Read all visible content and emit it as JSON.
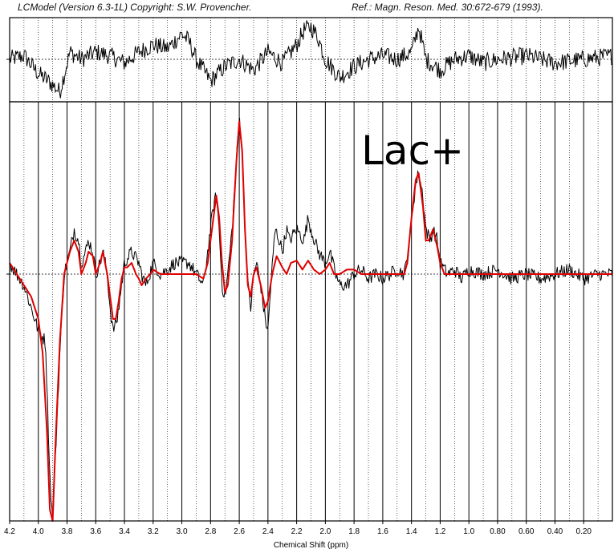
{
  "header": {
    "version": "LCModel (Version 6.3-1L) Copyright: S.W. Provencher.",
    "reference": "Ref.: Magn. Reson. Med. 30:672-679 (1993)."
  },
  "chart_data": {
    "type": "line",
    "metabolite_label": "Lac+",
    "xlabel": "Chemical Shift (ppm)",
    "xlim": [
      4.2,
      0.0
    ],
    "x_reversed": true,
    "x_ticks": [
      4.2,
      4.0,
      3.8,
      3.6,
      3.4,
      3.2,
      3.0,
      2.8,
      2.6,
      2.4,
      2.2,
      2.0,
      1.8,
      1.6,
      1.4,
      1.2,
      1.0,
      0.8,
      0.6,
      0.4,
      0.2
    ],
    "x_tick_labels": [
      "4.2",
      "4.0",
      "3.8",
      "3.6",
      "3.4",
      "3.2",
      "3.0",
      "2.8",
      "2.6",
      "2.4",
      "2.2",
      "2.0",
      "1.8",
      "1.6",
      "1.4",
      "1.2",
      "1.0",
      "0.80",
      "0.60",
      "0.40",
      "0.20"
    ],
    "grid": true,
    "colors": {
      "data": "#000000",
      "fit": "#e00000",
      "grid": "#000000"
    },
    "residual_panel": {
      "baseline_dotted": true,
      "points": [
        [
          4.2,
          0.0
        ],
        [
          4.1,
          0.1
        ],
        [
          4.0,
          -0.4
        ],
        [
          3.93,
          -0.6
        ],
        [
          3.85,
          -0.9
        ],
        [
          3.78,
          0.2
        ],
        [
          3.7,
          0.0
        ],
        [
          3.6,
          0.2
        ],
        [
          3.5,
          0.1
        ],
        [
          3.4,
          -0.1
        ],
        [
          3.3,
          0.2
        ],
        [
          3.2,
          0.4
        ],
        [
          3.1,
          0.3
        ],
        [
          3.0,
          0.7
        ],
        [
          2.95,
          0.5
        ],
        [
          2.9,
          0.0
        ],
        [
          2.8,
          -0.6
        ],
        [
          2.7,
          -0.2
        ],
        [
          2.6,
          0.0
        ],
        [
          2.5,
          -0.3
        ],
        [
          2.4,
          0.2
        ],
        [
          2.3,
          -0.1
        ],
        [
          2.2,
          0.4
        ],
        [
          2.15,
          0.8
        ],
        [
          2.1,
          0.9
        ],
        [
          2.05,
          0.6
        ],
        [
          2.0,
          0.0
        ],
        [
          1.9,
          -0.5
        ],
        [
          1.8,
          -0.2
        ],
        [
          1.7,
          0.0
        ],
        [
          1.6,
          0.1
        ],
        [
          1.5,
          0.0
        ],
        [
          1.4,
          0.2
        ],
        [
          1.35,
          0.9
        ],
        [
          1.3,
          0.0
        ],
        [
          1.2,
          -0.3
        ],
        [
          1.1,
          0.0
        ],
        [
          1.0,
          0.1
        ],
        [
          0.9,
          -0.1
        ],
        [
          0.8,
          0.0
        ],
        [
          0.6,
          0.1
        ],
        [
          0.4,
          -0.1
        ],
        [
          0.2,
          0.0
        ],
        [
          0.0,
          0.1
        ]
      ]
    },
    "series": [
      {
        "id": "data",
        "points": [
          [
            4.2,
            0.05
          ],
          [
            4.15,
            0.0
          ],
          [
            4.1,
            -0.05
          ],
          [
            4.05,
            -0.15
          ],
          [
            4.0,
            -0.25
          ],
          [
            3.95,
            -0.3
          ],
          [
            3.92,
            -0.9
          ],
          [
            3.9,
            -1.1
          ],
          [
            3.88,
            -0.8
          ],
          [
            3.85,
            -0.35
          ],
          [
            3.82,
            0.0
          ],
          [
            3.78,
            0.1
          ],
          [
            3.75,
            0.2
          ],
          [
            3.72,
            0.15
          ],
          [
            3.7,
            0.05
          ],
          [
            3.67,
            0.1
          ],
          [
            3.65,
            0.15
          ],
          [
            3.62,
            0.1
          ],
          [
            3.6,
            0.0
          ],
          [
            3.57,
            0.05
          ],
          [
            3.55,
            0.1
          ],
          [
            3.52,
            0.0
          ],
          [
            3.5,
            -0.15
          ],
          [
            3.48,
            -0.25
          ],
          [
            3.45,
            -0.2
          ],
          [
            3.42,
            -0.05
          ],
          [
            3.4,
            0.05
          ],
          [
            3.35,
            0.1
          ],
          [
            3.3,
            0.05
          ],
          [
            3.28,
            0.0
          ],
          [
            3.25,
            -0.05
          ],
          [
            3.2,
            0.05
          ],
          [
            3.15,
            0.0
          ],
          [
            3.1,
            0.02
          ],
          [
            3.05,
            0.05
          ],
          [
            3.0,
            0.05
          ],
          [
            2.95,
            0.05
          ],
          [
            2.9,
            0.0
          ],
          [
            2.85,
            -0.05
          ],
          [
            2.82,
            0.1
          ],
          [
            2.78,
            0.3
          ],
          [
            2.76,
            0.35
          ],
          [
            2.74,
            0.2
          ],
          [
            2.72,
            -0.05
          ],
          [
            2.7,
            -0.1
          ],
          [
            2.68,
            0.0
          ],
          [
            2.65,
            0.2
          ],
          [
            2.62,
            0.5
          ],
          [
            2.6,
            0.7
          ],
          [
            2.58,
            0.55
          ],
          [
            2.56,
            0.2
          ],
          [
            2.54,
            -0.05
          ],
          [
            2.52,
            -0.15
          ],
          [
            2.5,
            0.0
          ],
          [
            2.48,
            0.05
          ],
          [
            2.45,
            -0.05
          ],
          [
            2.42,
            -0.2
          ],
          [
            2.4,
            -0.25
          ],
          [
            2.38,
            -0.05
          ],
          [
            2.35,
            0.2
          ],
          [
            2.32,
            0.15
          ],
          [
            2.3,
            0.1
          ],
          [
            2.27,
            0.2
          ],
          [
            2.25,
            0.15
          ],
          [
            2.2,
            0.2
          ],
          [
            2.15,
            0.15
          ],
          [
            2.12,
            0.25
          ],
          [
            2.1,
            0.2
          ],
          [
            2.05,
            0.1
          ],
          [
            2.0,
            0.05
          ],
          [
            1.97,
            0.1
          ],
          [
            1.93,
            0.0
          ],
          [
            1.9,
            -0.05
          ],
          [
            1.85,
            -0.05
          ],
          [
            1.8,
            0.0
          ],
          [
            1.75,
            0.02
          ],
          [
            1.7,
            -0.02
          ],
          [
            1.65,
            0.0
          ],
          [
            1.6,
            -0.02
          ],
          [
            1.55,
            0.0
          ],
          [
            1.5,
            0.02
          ],
          [
            1.45,
            0.0
          ],
          [
            1.42,
            0.1
          ],
          [
            1.4,
            0.25
          ],
          [
            1.37,
            0.4
          ],
          [
            1.35,
            0.45
          ],
          [
            1.32,
            0.35
          ],
          [
            1.3,
            0.2
          ],
          [
            1.27,
            0.15
          ],
          [
            1.25,
            0.2
          ],
          [
            1.22,
            0.15
          ],
          [
            1.2,
            0.05
          ],
          [
            1.15,
            0.0
          ],
          [
            1.1,
            0.02
          ],
          [
            1.05,
            -0.02
          ],
          [
            1.0,
            0.02
          ],
          [
            0.9,
            0.0
          ],
          [
            0.8,
            0.02
          ],
          [
            0.7,
            -0.02
          ],
          [
            0.6,
            0.0
          ],
          [
            0.5,
            -0.02
          ],
          [
            0.4,
            0.0
          ],
          [
            0.3,
            0.02
          ],
          [
            0.2,
            -0.02
          ],
          [
            0.1,
            0.0
          ],
          [
            0.0,
            0.0
          ]
        ],
        "noisy": true
      },
      {
        "id": "fit",
        "points": [
          [
            4.2,
            0.05
          ],
          [
            4.15,
            0.0
          ],
          [
            4.1,
            -0.05
          ],
          [
            4.05,
            -0.1
          ],
          [
            4.0,
            -0.2
          ],
          [
            3.97,
            -0.35
          ],
          [
            3.94,
            -0.7
          ],
          [
            3.92,
            -1.05
          ],
          [
            3.9,
            -1.1
          ],
          [
            3.88,
            -0.75
          ],
          [
            3.85,
            -0.3
          ],
          [
            3.82,
            0.0
          ],
          [
            3.78,
            0.1
          ],
          [
            3.75,
            0.15
          ],
          [
            3.72,
            0.1
          ],
          [
            3.7,
            0.0
          ],
          [
            3.67,
            0.05
          ],
          [
            3.65,
            0.1
          ],
          [
            3.62,
            0.08
          ],
          [
            3.6,
            0.0
          ],
          [
            3.57,
            0.05
          ],
          [
            3.55,
            0.1
          ],
          [
            3.52,
            0.0
          ],
          [
            3.5,
            -0.1
          ],
          [
            3.48,
            -0.2
          ],
          [
            3.46,
            -0.2
          ],
          [
            3.44,
            -0.12
          ],
          [
            3.42,
            -0.02
          ],
          [
            3.4,
            0.03
          ],
          [
            3.38,
            0.03
          ],
          [
            3.35,
            0.05
          ],
          [
            3.32,
            0.0
          ],
          [
            3.3,
            -0.02
          ],
          [
            3.28,
            -0.05
          ],
          [
            3.25,
            -0.02
          ],
          [
            3.22,
            0.0
          ],
          [
            3.2,
            0.02
          ],
          [
            3.15,
            0.0
          ],
          [
            3.0,
            0.0
          ],
          [
            2.9,
            0.0
          ],
          [
            2.85,
            -0.02
          ],
          [
            2.82,
            0.05
          ],
          [
            2.79,
            0.2
          ],
          [
            2.76,
            0.35
          ],
          [
            2.74,
            0.25
          ],
          [
            2.72,
            0.05
          ],
          [
            2.7,
            -0.08
          ],
          [
            2.68,
            -0.05
          ],
          [
            2.65,
            0.15
          ],
          [
            2.62,
            0.5
          ],
          [
            2.6,
            0.68
          ],
          [
            2.58,
            0.55
          ],
          [
            2.56,
            0.2
          ],
          [
            2.54,
            -0.05
          ],
          [
            2.52,
            -0.1
          ],
          [
            2.5,
            0.0
          ],
          [
            2.48,
            0.03
          ],
          [
            2.45,
            -0.05
          ],
          [
            2.42,
            -0.15
          ],
          [
            2.4,
            -0.12
          ],
          [
            2.37,
            0.0
          ],
          [
            2.34,
            0.08
          ],
          [
            2.3,
            0.03
          ],
          [
            2.27,
            0.0
          ],
          [
            2.24,
            0.05
          ],
          [
            2.2,
            0.06
          ],
          [
            2.16,
            0.02
          ],
          [
            2.12,
            0.06
          ],
          [
            2.08,
            0.02
          ],
          [
            2.04,
            0.0
          ],
          [
            2.0,
            0.02
          ],
          [
            1.97,
            0.05
          ],
          [
            1.94,
            0.0
          ],
          [
            1.9,
            0.0
          ],
          [
            1.85,
            0.02
          ],
          [
            1.8,
            0.02
          ],
          [
            1.75,
            0.0
          ],
          [
            1.65,
            0.0
          ],
          [
            1.5,
            0.0
          ],
          [
            1.45,
            0.0
          ],
          [
            1.43,
            0.05
          ],
          [
            1.4,
            0.25
          ],
          [
            1.37,
            0.42
          ],
          [
            1.35,
            0.45
          ],
          [
            1.32,
            0.3
          ],
          [
            1.3,
            0.15
          ],
          [
            1.28,
            0.15
          ],
          [
            1.25,
            0.2
          ],
          [
            1.22,
            0.12
          ],
          [
            1.2,
            0.05
          ],
          [
            1.17,
            0.0
          ],
          [
            1.1,
            0.0
          ],
          [
            0.0,
            0.0
          ]
        ],
        "noisy": false
      }
    ]
  }
}
